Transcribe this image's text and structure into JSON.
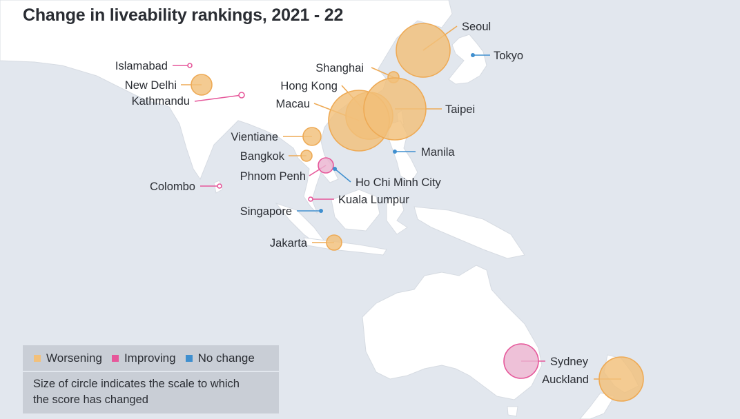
{
  "title": "Change in liveability rankings, 2021 - 22",
  "colors": {
    "worsening": "#f2c07a",
    "worsening_stroke": "#eeaa55",
    "improving": "#e6579a",
    "improving_fill": "#eab3cf",
    "no_change": "#3f8fcf",
    "land": "#ffffff",
    "water": "#e2e7ee"
  },
  "legend": {
    "items": [
      {
        "label": "Worsening",
        "status": "worsening"
      },
      {
        "label": "Improving",
        "status": "improving"
      },
      {
        "label": "No change",
        "status": "no_change"
      }
    ],
    "note_line1": "Size of circle indicates the scale to which",
    "note_line2": "the score has changed"
  },
  "cities": [
    {
      "name": "Seoul",
      "status": "worsening",
      "size": "large"
    },
    {
      "name": "Tokyo",
      "status": "no_change",
      "size": "dot"
    },
    {
      "name": "Shanghai",
      "status": "worsening",
      "size": "small"
    },
    {
      "name": "Hong Kong",
      "status": "worsening",
      "size": "large"
    },
    {
      "name": "Macau",
      "status": "worsening",
      "size": "large"
    },
    {
      "name": "Taipei",
      "status": "worsening",
      "size": "large"
    },
    {
      "name": "Islamabad",
      "status": "improving",
      "size": "dot"
    },
    {
      "name": "New Delhi",
      "status": "worsening",
      "size": "medium"
    },
    {
      "name": "Kathmandu",
      "status": "improving",
      "size": "dot"
    },
    {
      "name": "Vientiane",
      "status": "worsening",
      "size": "medium"
    },
    {
      "name": "Bangkok",
      "status": "worsening",
      "size": "small"
    },
    {
      "name": "Phnom Penh",
      "status": "improving",
      "size": "medium"
    },
    {
      "name": "Ho Chi Minh City",
      "status": "no_change",
      "size": "dot"
    },
    {
      "name": "Manila",
      "status": "no_change",
      "size": "dot"
    },
    {
      "name": "Colombo",
      "status": "improving",
      "size": "dot"
    },
    {
      "name": "Kuala Lumpur",
      "status": "improving",
      "size": "dot"
    },
    {
      "name": "Singapore",
      "status": "no_change",
      "size": "dot"
    },
    {
      "name": "Jakarta",
      "status": "worsening",
      "size": "small"
    },
    {
      "name": "Sydney",
      "status": "improving",
      "size": "large"
    },
    {
      "name": "Auckland",
      "status": "worsening",
      "size": "large"
    }
  ]
}
